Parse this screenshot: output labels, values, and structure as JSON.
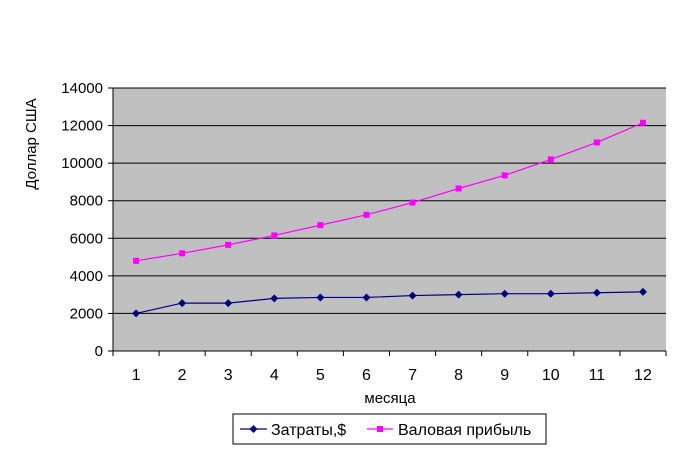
{
  "chart_data": {
    "type": "line",
    "xlabel": "месяца",
    "ylabel": "Доллар США",
    "categories": [
      "1",
      "2",
      "3",
      "4",
      "5",
      "6",
      "7",
      "8",
      "9",
      "10",
      "11",
      "12"
    ],
    "ylim": [
      0,
      14000
    ],
    "yticks": [
      0,
      2000,
      4000,
      6000,
      8000,
      10000,
      12000,
      14000
    ],
    "ytick_labels": [
      "0",
      "2000",
      "4000",
      "6000",
      "8000",
      "10000",
      "12000",
      "14000"
    ],
    "grid": true,
    "legend_position": "bottom",
    "plot_background": "#C0C0C0",
    "series": [
      {
        "name": "Затраты,$",
        "color": "#000080",
        "marker": "diamond",
        "values": [
          2000,
          2550,
          2550,
          2800,
          2850,
          2850,
          2950,
          3000,
          3050,
          3050,
          3100,
          3150
        ]
      },
      {
        "name": "Валовая прибыль",
        "color": "#FF00FF",
        "marker": "square",
        "values": [
          4800,
          5200,
          5650,
          6150,
          6700,
          7250,
          7900,
          8650,
          9350,
          10200,
          11100,
          12150
        ]
      }
    ]
  }
}
